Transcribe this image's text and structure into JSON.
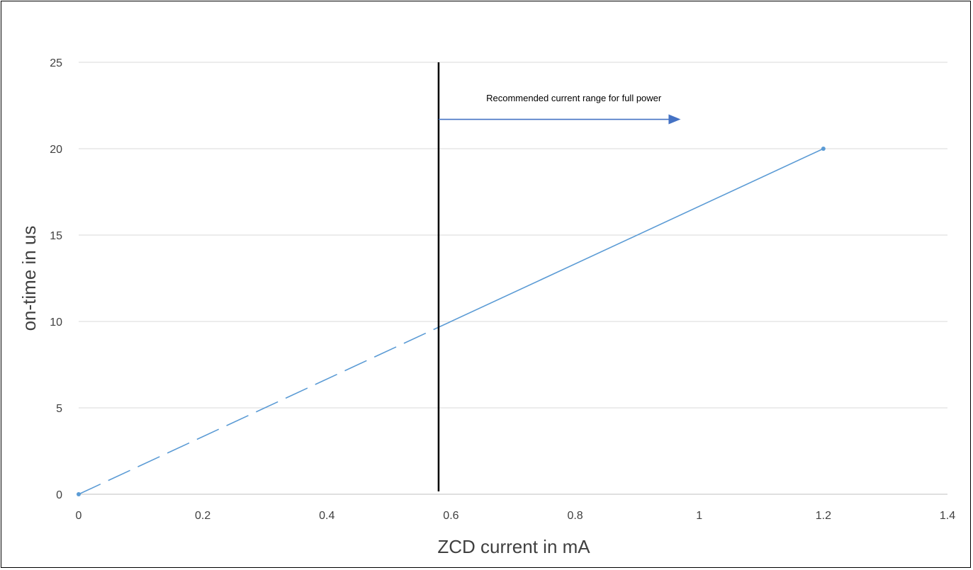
{
  "chart_data": {
    "type": "line",
    "title": "",
    "xlabel": "ZCD current in mA",
    "ylabel": "on-time in us",
    "xlim": [
      0,
      1.4
    ],
    "ylim": [
      0,
      25
    ],
    "x_ticks": [
      "0",
      "0.2",
      "0.4",
      "0.6",
      "0.8",
      "1",
      "1.2",
      "1.4"
    ],
    "y_ticks": [
      "0",
      "5",
      "10",
      "15",
      "20",
      "25"
    ],
    "grid": "horizontal",
    "legend": "none",
    "series": [
      {
        "points": [
          {
            "x": 0,
            "y": 0
          },
          {
            "x": 1.2,
            "y": 20
          }
        ],
        "dashed_below_x": 0.58,
        "color": "#5b9bd5"
      }
    ],
    "annotations": {
      "threshold_x": 0.58,
      "arrow_text": "Recommended current range for full power",
      "arrow_from_x": 0.58,
      "arrow_to_x": 0.97,
      "arrow_y": 21.7,
      "threshold_color": "#000000",
      "arrow_color": "#4472c4"
    }
  }
}
